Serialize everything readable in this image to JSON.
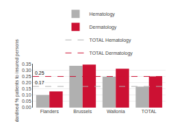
{
  "chart_data": {
    "type": "bar",
    "categories": [
      "Flanders",
      "Brussels",
      "Wallonia",
      "TOTAL"
    ],
    "series": [
      {
        "name": "Hematology",
        "color": "#b0b0b0",
        "values": [
          0.101,
          0.335,
          0.248,
          0.168
        ]
      },
      {
        "name": "Dermatology",
        "color": "#cc1133",
        "values": [
          0.13,
          0.345,
          0.312,
          0.25
        ]
      }
    ],
    "lines": [
      {
        "name": "TOTAL Hematology",
        "color": "#b0b0b0",
        "value": 0.17,
        "line_style": "dashed",
        "label": "0.17"
      },
      {
        "name": "TOTAL Dermatology",
        "color": "#cc1133",
        "value": 0.25,
        "line_style": "dashed",
        "label": "0.25"
      }
    ],
    "ylabel": "Standardised % patients to insured persons",
    "ylim": [
      0.0,
      0.352
    ],
    "yticks": [
      {
        "value": 0.0,
        "label": "0.00"
      },
      {
        "value": 0.05,
        "label": "0.05"
      },
      {
        "value": 0.1,
        "label": "0.10"
      },
      {
        "value": 0.15,
        "label": "0.15"
      },
      {
        "value": 0.2,
        "label": "0.20"
      },
      {
        "value": 0.25,
        "label": "0.25"
      },
      {
        "value": 0.3,
        "label": "0.30"
      },
      {
        "value": 0.35,
        "label": "0.35"
      }
    ],
    "grid": true,
    "legend": "top"
  }
}
